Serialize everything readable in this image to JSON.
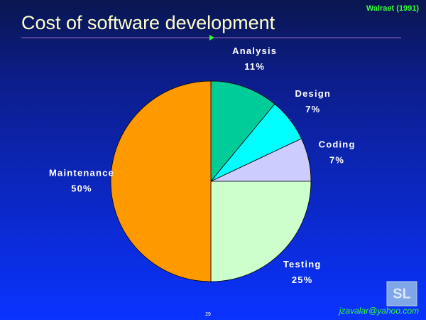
{
  "chart_data": {
    "type": "pie",
    "title": "Cost of software development",
    "categories": [
      "Analysis",
      "Design",
      "Coding",
      "Testing",
      "Maintenance"
    ],
    "values": [
      11,
      7,
      7,
      25,
      50
    ],
    "value_labels": [
      "11%",
      "7%",
      "7%",
      "25%",
      "50%"
    ],
    "colors": [
      "#00cc99",
      "#00ffff",
      "#ccccff",
      "#ccffcc",
      "#ff9900"
    ]
  },
  "source": "Walraet (1991)",
  "footer": "jzavalar@yahoo.com",
  "page_number": "29",
  "logo": "SL"
}
